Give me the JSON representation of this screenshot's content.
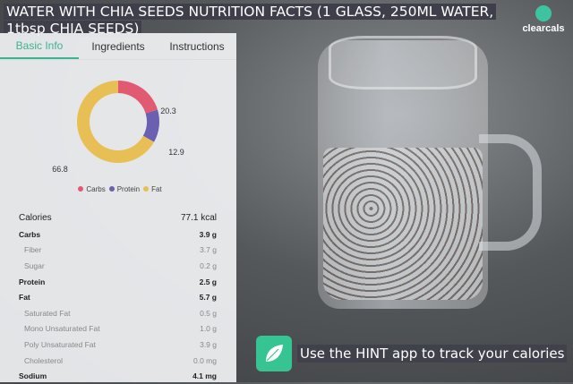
{
  "title": "WATER WITH CHIA SEEDS NUTRITION FACTS (1 GLASS, 250ML WATER, 1tbsp CHIA SEEDS)",
  "brand": "clearcals",
  "tabs": [
    {
      "label": "Basic Info",
      "active": true
    },
    {
      "label": "Ingredients"
    },
    {
      "label": "Instructions"
    }
  ],
  "chart_data": {
    "type": "pie",
    "donut": true,
    "categories": [
      "Carbs",
      "Protein",
      "Fat"
    ],
    "values": [
      20.3,
      12.9,
      66.8
    ],
    "colors": [
      "#e25a72",
      "#6a5fb0",
      "#e8bf55"
    ],
    "legend": "bottom"
  },
  "nutrition": [
    {
      "label": "Calories",
      "value": "77.1 kcal",
      "kind": "cal"
    },
    {
      "label": "Carbs",
      "value": "3.9 g",
      "kind": "main"
    },
    {
      "label": "Fiber",
      "value": "3.7 g",
      "kind": "sub"
    },
    {
      "label": "Sugar",
      "value": "0.2 g",
      "kind": "sub"
    },
    {
      "label": "Protein",
      "value": "2.5 g",
      "kind": "main"
    },
    {
      "label": "Fat",
      "value": "5.7 g",
      "kind": "main"
    },
    {
      "label": "Saturated Fat",
      "value": "0.5 g",
      "kind": "sub"
    },
    {
      "label": "Mono Unsaturated Fat",
      "value": "1.0 g",
      "kind": "sub"
    },
    {
      "label": "Poly Unsaturated Fat",
      "value": "3.9 g",
      "kind": "sub"
    },
    {
      "label": "Cholesterol",
      "value": "0.0 mg",
      "kind": "sub"
    },
    {
      "label": "Sodium",
      "value": "4.1 mg",
      "kind": "main"
    }
  ],
  "hint": {
    "text": "Use the HINT app to track your calories",
    "icon": "leaf-icon"
  },
  "accent": "#3cb391"
}
